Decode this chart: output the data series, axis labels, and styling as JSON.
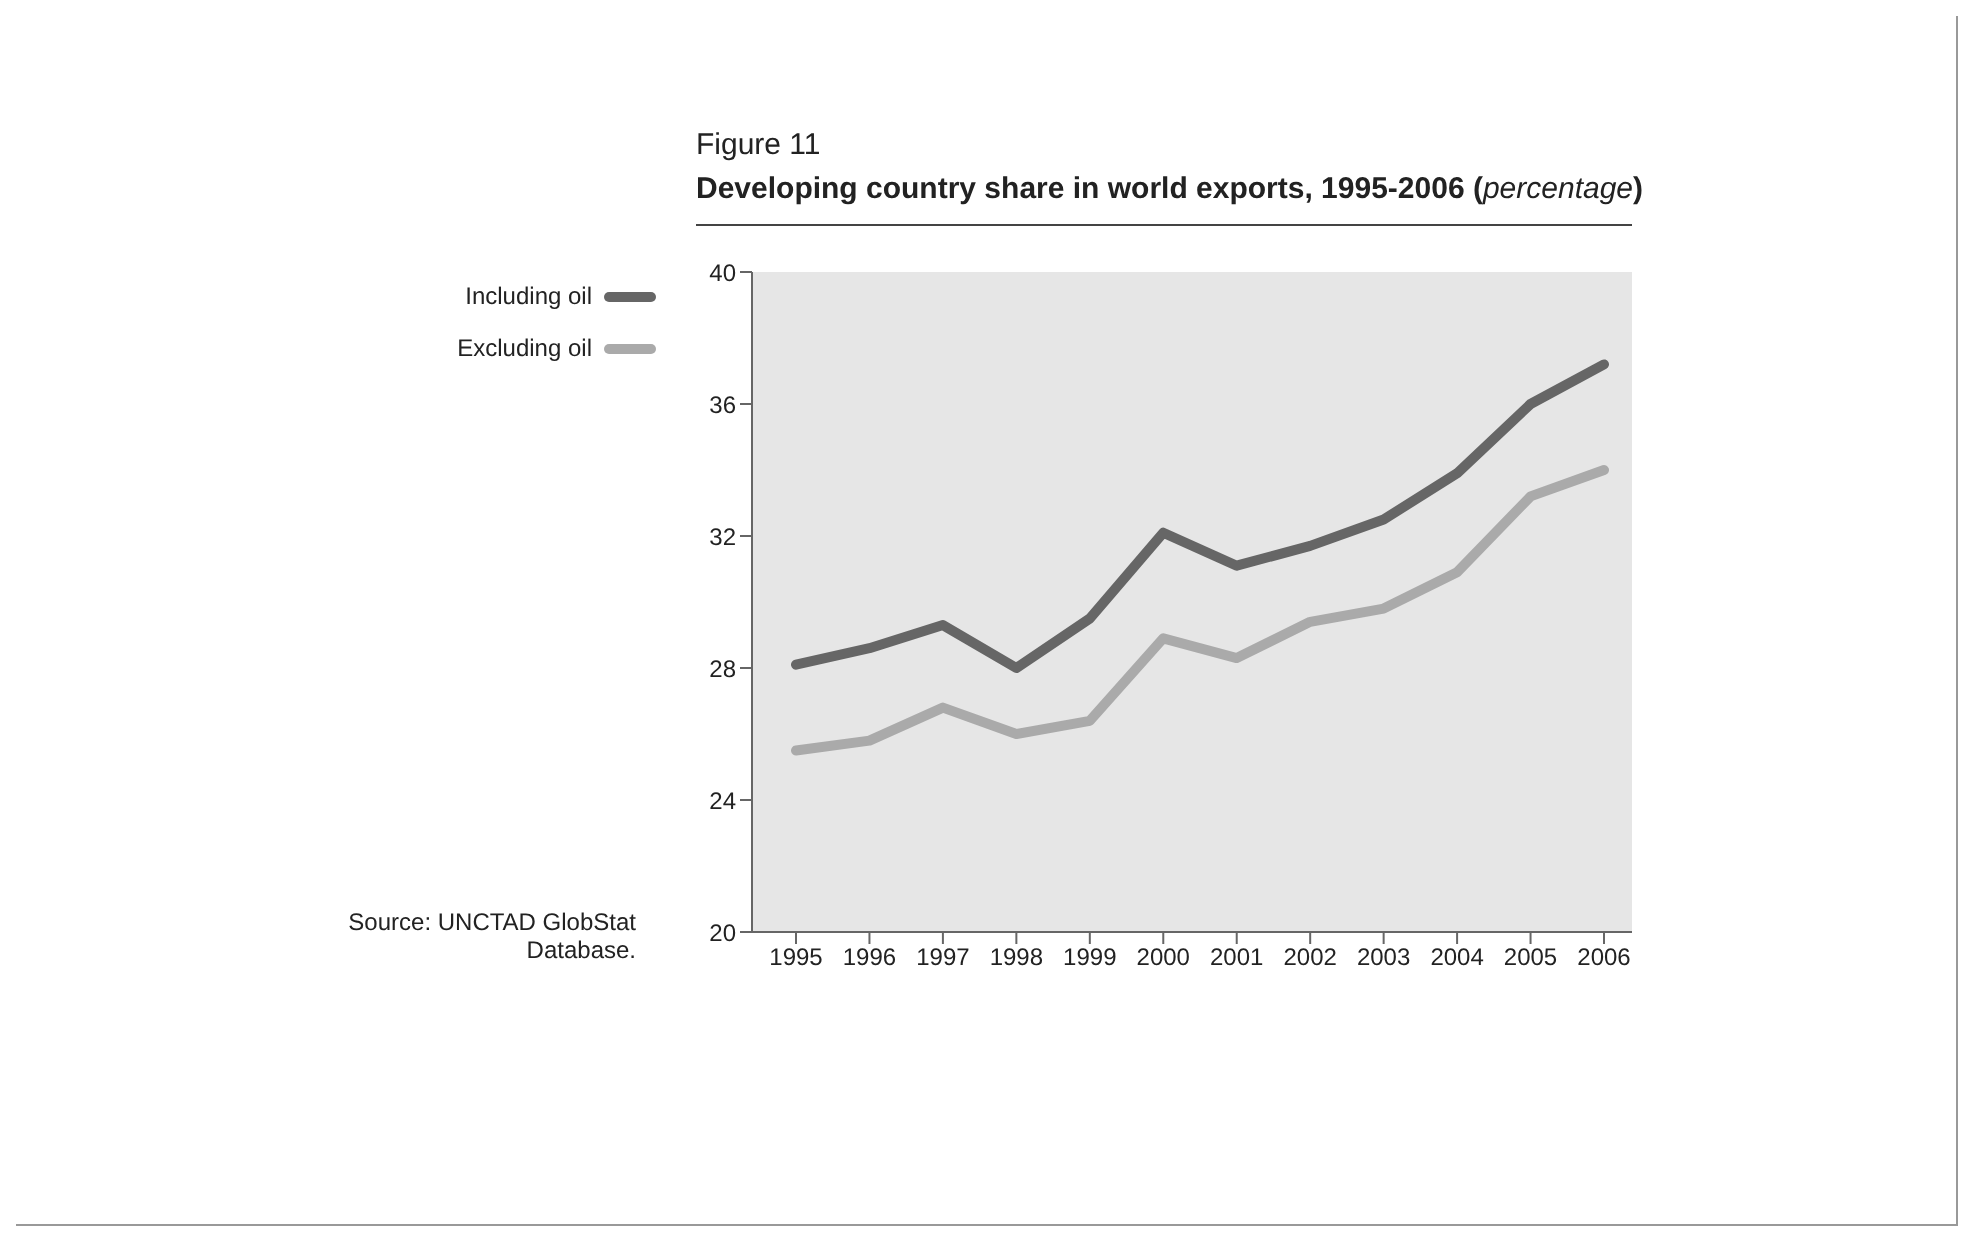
{
  "chart_data": {
    "type": "line",
    "title": "Figure 11",
    "subtitle": "Developing country share in world exports, 1995-2006 (percentage)",
    "categories": [
      "1995",
      "1996",
      "1997",
      "1998",
      "1999",
      "2000",
      "2001",
      "2002",
      "2003",
      "2004",
      "2005",
      "2006"
    ],
    "series": [
      {
        "name": "Including oil",
        "color": "#666666",
        "values": [
          28.1,
          28.6,
          29.3,
          28.0,
          29.5,
          32.1,
          31.1,
          31.7,
          32.5,
          33.9,
          36.0,
          37.2
        ]
      },
      {
        "name": "Excluding oil",
        "color": "#aaaaaa",
        "values": [
          25.5,
          25.8,
          26.8,
          26.0,
          26.4,
          28.9,
          28.3,
          29.4,
          29.8,
          30.9,
          33.2,
          34.0
        ]
      }
    ],
    "ylim": [
      20,
      40
    ],
    "yticks": [
      20,
      24,
      28,
      32,
      36,
      40
    ],
    "grid": false,
    "legend": "left",
    "marker": "none",
    "line_style": "solid",
    "annotations": [
      "Source: UNCTAD GlobStat Database."
    ]
  }
}
